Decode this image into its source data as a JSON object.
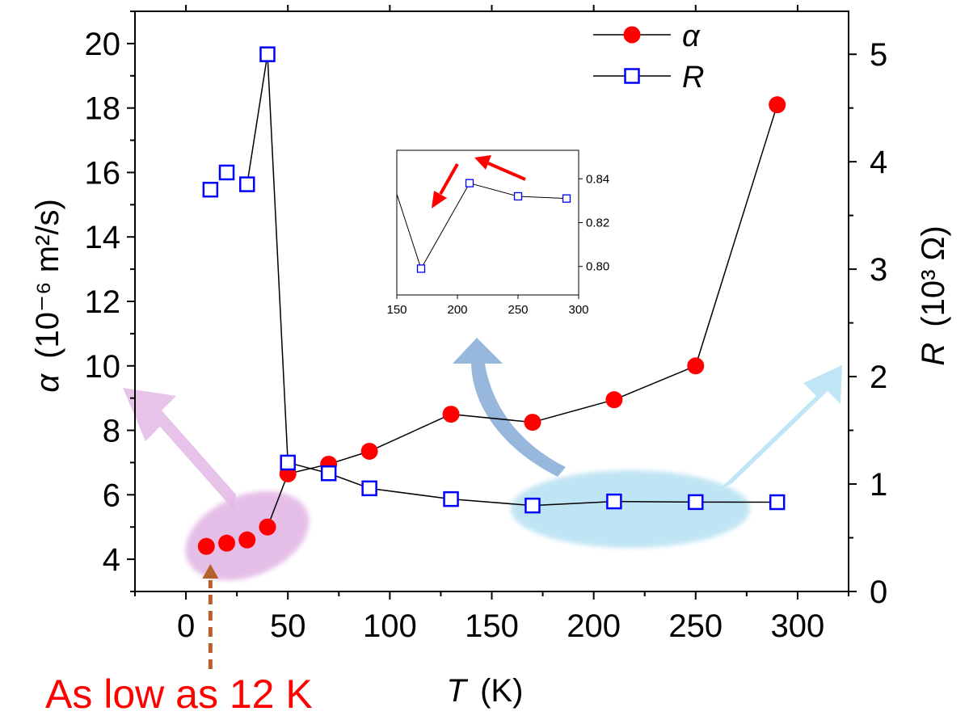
{
  "chart_data": [
    {
      "type": "scatter",
      "x_axis": {
        "label_var": "T",
        "label_unit": "(K)",
        "range": [
          -25,
          325
        ],
        "ticks": [
          0,
          50,
          100,
          150,
          200,
          250,
          300
        ],
        "tick_labels": [
          "0",
          "50",
          "100",
          "150",
          "200",
          "250",
          "300"
        ]
      },
      "y_axis_left": {
        "label_var": "α",
        "label_unit": "(10⁻⁶ m²/s)",
        "range": [
          3,
          21
        ],
        "ticks": [
          4,
          6,
          8,
          10,
          12,
          14,
          16,
          18,
          20
        ],
        "tick_labels": [
          "4",
          "6",
          "8",
          "10",
          "12",
          "14",
          "16",
          "18",
          "20"
        ]
      },
      "y_axis_right": {
        "label_var": "R",
        "label_unit": "(10³ Ω)",
        "range": [
          0,
          5.4
        ],
        "ticks": [
          0,
          1,
          2,
          3,
          4,
          5
        ],
        "tick_labels": [
          "0",
          "1",
          "2",
          "3",
          "4",
          "5"
        ]
      },
      "series": [
        {
          "name": "α",
          "axis": "left",
          "marker": "filled-circle",
          "color": "#ff0000",
          "x": [
            10,
            20,
            30,
            40,
            50,
            70,
            90,
            130,
            170,
            210,
            250,
            290
          ],
          "y": [
            4.4,
            4.5,
            4.6,
            5.0,
            6.65,
            6.95,
            7.35,
            8.5,
            8.25,
            8.95,
            10.0,
            18.1
          ],
          "segments": [
            [
              3,
              4
            ],
            [
              4,
              5
            ],
            [
              5,
              6
            ],
            [
              6,
              7
            ],
            [
              7,
              8
            ],
            [
              8,
              9
            ],
            [
              9,
              10
            ],
            [
              10,
              11
            ]
          ]
        },
        {
          "name": "R",
          "axis": "right",
          "marker": "open-square",
          "color": "#0000ff",
          "x": [
            12,
            20,
            30,
            40,
            50,
            70,
            90,
            130,
            170,
            210,
            250,
            290
          ],
          "y": [
            3.74,
            3.9,
            3.79,
            5.0,
            1.2,
            1.1,
            0.96,
            0.86,
            0.8,
            0.838,
            0.832,
            0.831
          ],
          "segments": [
            [
              2,
              3
            ],
            [
              3,
              4
            ],
            [
              4,
              5
            ],
            [
              5,
              6
            ],
            [
              6,
              7
            ],
            [
              7,
              8
            ],
            [
              8,
              9
            ],
            [
              9,
              10
            ],
            [
              10,
              11
            ]
          ]
        }
      ],
      "legend": {
        "placement": "top-right",
        "entries": [
          "α",
          "R"
        ]
      }
    },
    {
      "type": "line",
      "role": "inset",
      "x_axis": {
        "range": [
          150,
          300
        ],
        "ticks": [
          150,
          200,
          250,
          300
        ],
        "tick_labels": [
          "150",
          "200",
          "250",
          "300"
        ]
      },
      "y_axis_right": {
        "range": [
          0.787,
          0.853
        ],
        "ticks": [
          0.8,
          0.82,
          0.84
        ],
        "tick_labels": [
          "0.80",
          "0.82",
          "0.84"
        ]
      },
      "series": [
        {
          "name": "R",
          "marker": "open-square",
          "color": "#0000ff",
          "x": [
            150,
            170,
            210,
            250,
            290
          ],
          "y": [
            0.833,
            0.799,
            0.838,
            0.832,
            0.831
          ]
        }
      ]
    }
  ],
  "annotation": {
    "text": "As low as 12 K",
    "color": "#ff0000",
    "target_x": 12
  },
  "colors": {
    "alpha_marker": "#ff0000",
    "r_marker": "#0000ff",
    "arrow_dashed": "#b5622a",
    "pink_highlight": "#e3b8e6",
    "blue_highlight": "#b9e2f3",
    "blue_arrow": "#7ea5d4",
    "inset_arrows": "#ff0000"
  }
}
